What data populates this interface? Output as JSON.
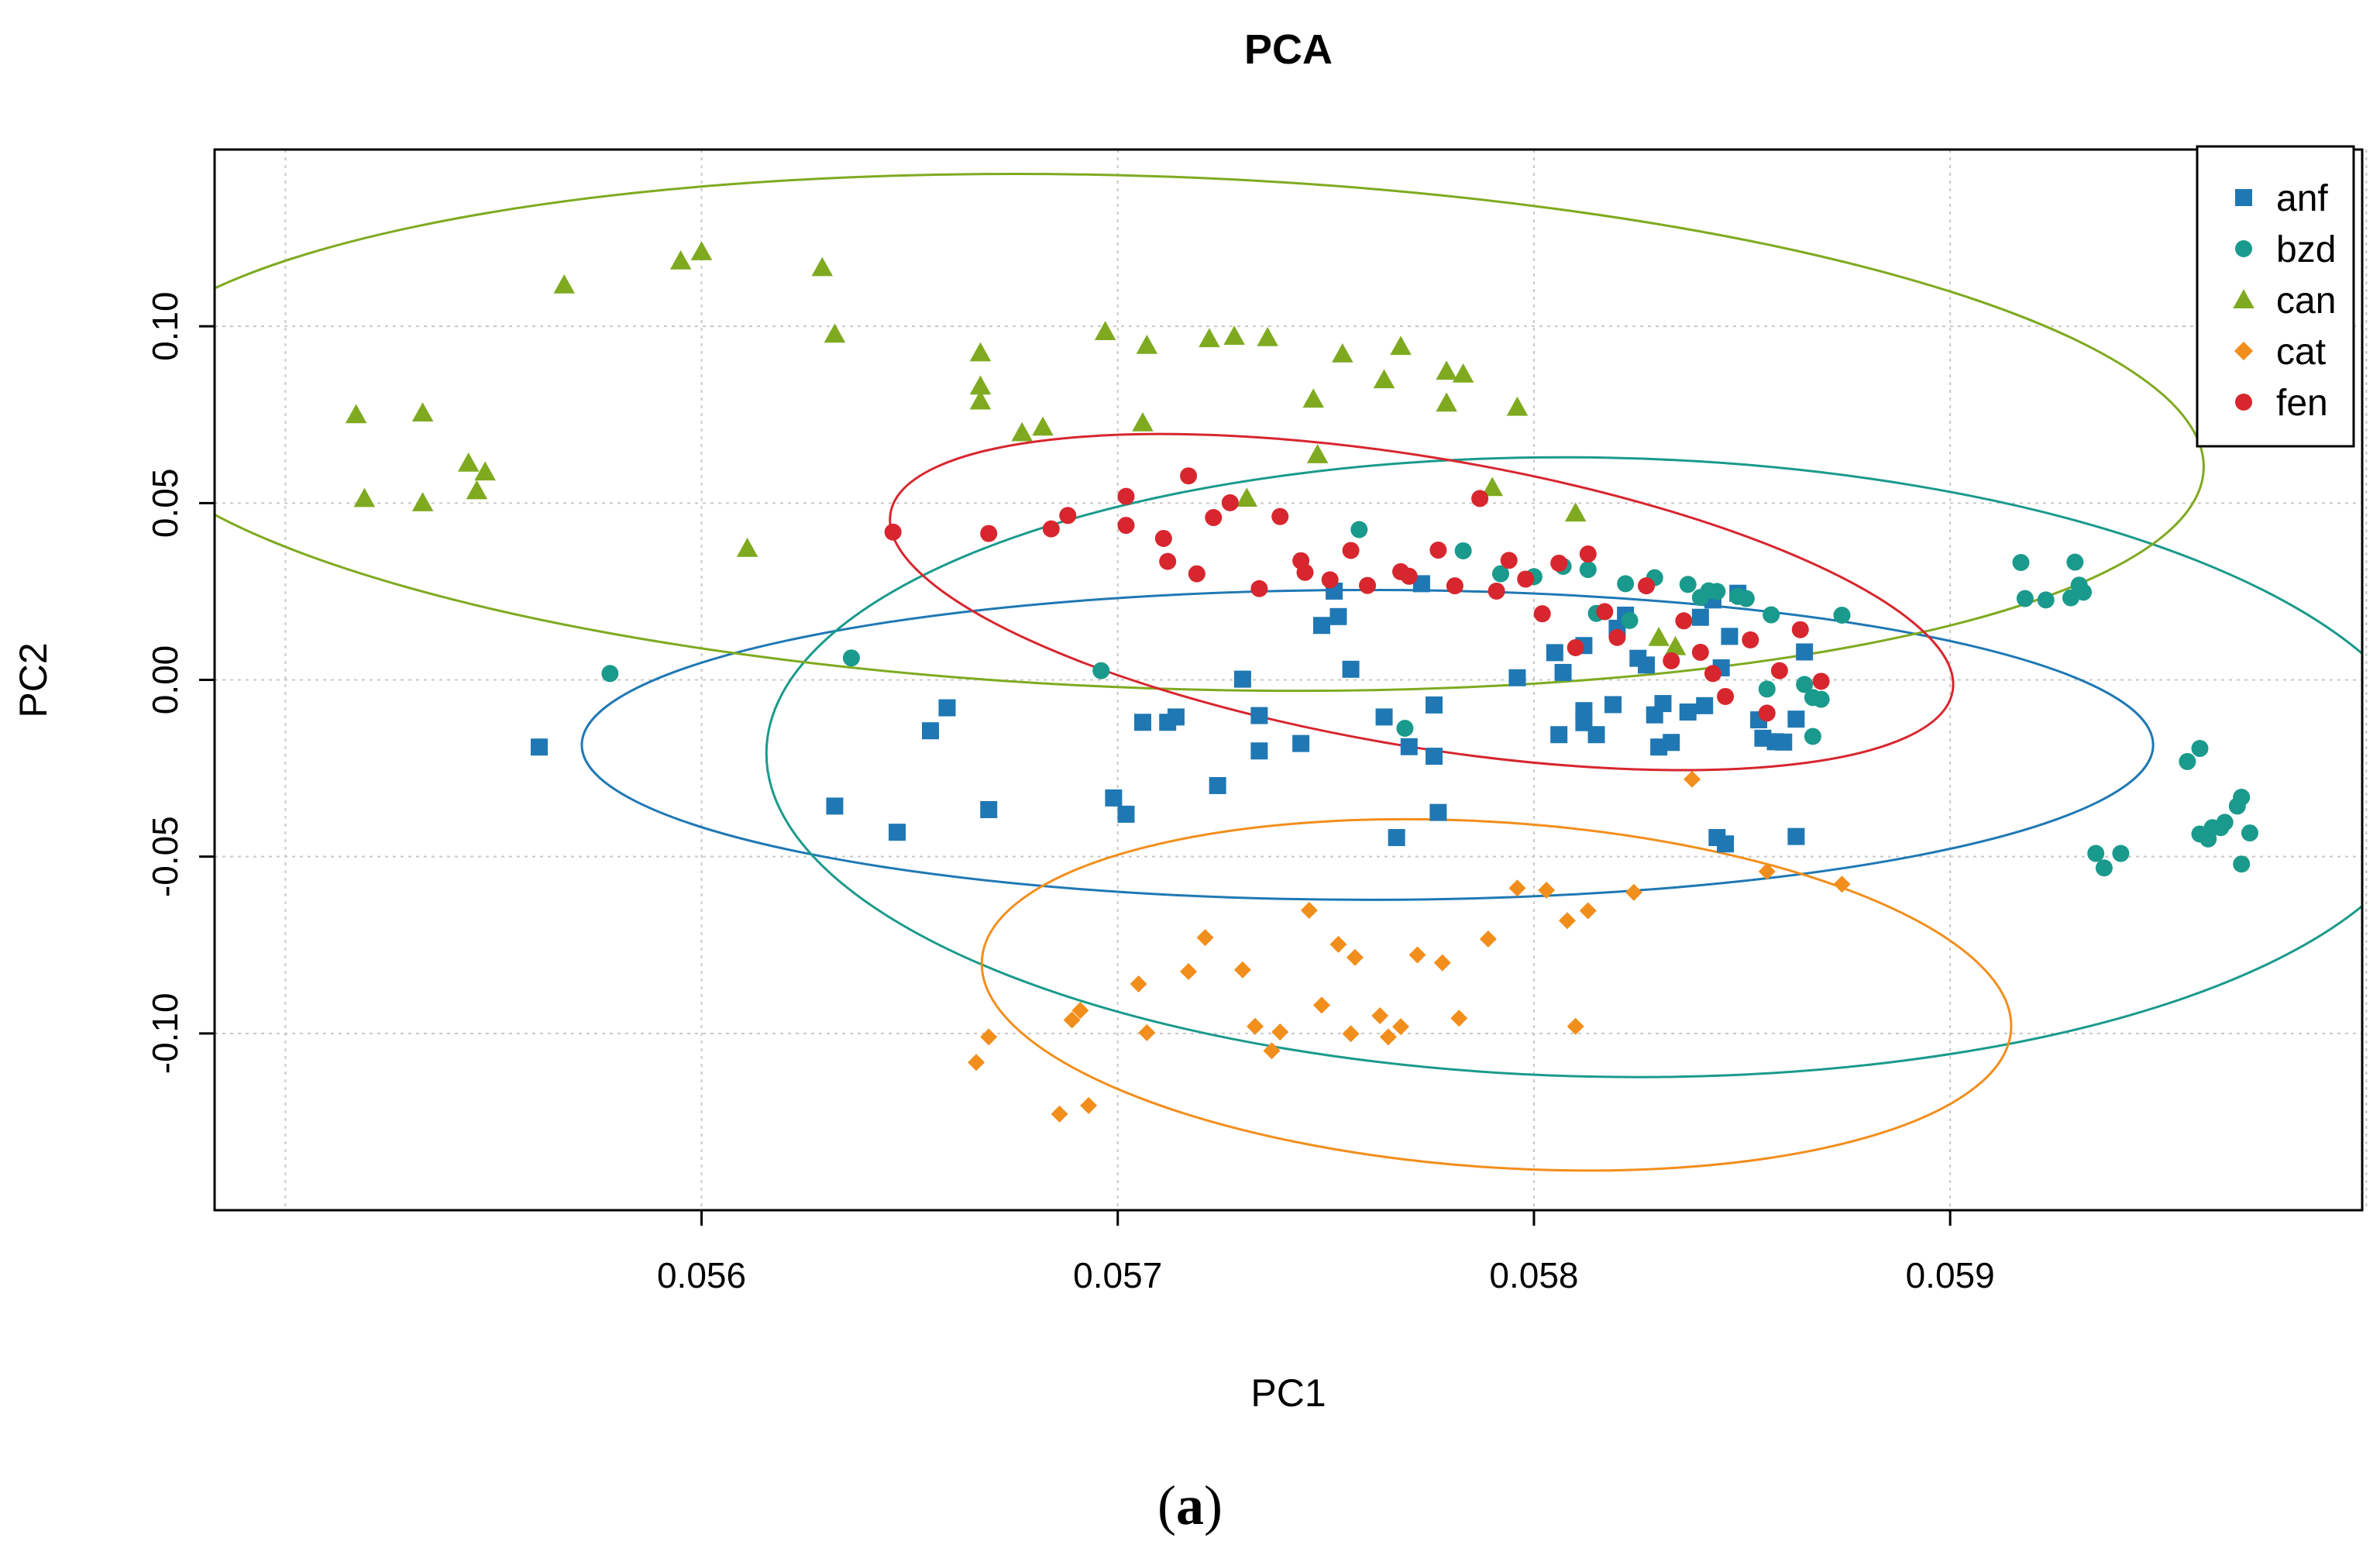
{
  "caption": {
    "label": "a"
  },
  "chart_data": {
    "type": "scatter",
    "title": "PCA",
    "xlabel": "PC1",
    "ylabel": "PC2",
    "xlim": [
      0.05483,
      0.05999
    ],
    "ylim": [
      -0.15,
      0.15
    ],
    "xticks": [
      0.056,
      0.057,
      0.058,
      0.059
    ],
    "xtick_labels": [
      "0.056",
      "0.057",
      "0.058",
      "0.059"
    ],
    "yticks": [
      -0.1,
      -0.05,
      0.0,
      0.05,
      0.1
    ],
    "ytick_labels": [
      "-0.10",
      "-0.05",
      "0.00",
      "0.05",
      "0.10"
    ],
    "grid": true,
    "legend_position": "top-right",
    "series": [
      {
        "name": "anf",
        "color": "#1F78B4",
        "marker": "square",
        "ellipse": {
          "cx": 0.0576,
          "cy": -0.0184,
          "rx": 0.0018877,
          "ry": 0.04381,
          "angle_deg": 0.0
        },
        "points": [
          [
            0.05561,
            -0.019
          ],
          [
            0.05632,
            -0.0357
          ],
          [
            0.05647,
            -0.0431
          ],
          [
            0.05655,
            -0.0144
          ],
          [
            0.05659,
            -0.0079
          ],
          [
            0.05669,
            -0.0367
          ],
          [
            0.05699,
            -0.0334
          ],
          [
            0.05702,
            -0.038
          ],
          [
            0.05706,
            -0.012
          ],
          [
            0.05712,
            -0.012
          ],
          [
            0.05714,
            -0.0105
          ],
          [
            0.05724,
            -0.0299
          ],
          [
            0.0573,
            0.0002
          ],
          [
            0.05734,
            -0.0101
          ],
          [
            0.05734,
            -0.0201
          ],
          [
            0.05744,
            -0.018
          ],
          [
            0.05749,
            0.0154
          ],
          [
            0.05752,
            0.0251
          ],
          [
            0.05753,
            0.0179
          ],
          [
            0.05756,
            0.003
          ],
          [
            0.05764,
            -0.0105
          ],
          [
            0.05767,
            -0.0446
          ],
          [
            0.0577,
            -0.0189
          ],
          [
            0.05773,
            0.0272
          ],
          [
            0.05776,
            -0.0071
          ],
          [
            0.05776,
            -0.0216
          ],
          [
            0.05777,
            -0.0375
          ],
          [
            0.05796,
            0.0006
          ],
          [
            0.05805,
            0.0077
          ],
          [
            0.05806,
            -0.0155
          ],
          [
            0.05807,
            0.0021
          ],
          [
            0.05812,
            0.0097
          ],
          [
            0.05812,
            -0.0087
          ],
          [
            0.05812,
            -0.0121
          ],
          [
            0.05815,
            -0.0155
          ],
          [
            0.05819,
            -0.007
          ],
          [
            0.0582,
            0.0146
          ],
          [
            0.05822,
            0.0183
          ],
          [
            0.05825,
            0.0061
          ],
          [
            0.05827,
            0.0042
          ],
          [
            0.05829,
            -0.0099
          ],
          [
            0.0583,
            -0.019
          ],
          [
            0.05831,
            -0.0067
          ],
          [
            0.05833,
            -0.0177
          ],
          [
            0.05837,
            -0.0091
          ],
          [
            0.0584,
            0.0177
          ],
          [
            0.05841,
            -0.0073
          ],
          [
            0.05843,
            0.0226
          ],
          [
            0.05844,
            -0.0446
          ],
          [
            0.05845,
            0.0034
          ],
          [
            0.05846,
            -0.0464
          ],
          [
            0.05847,
            0.0123
          ],
          [
            0.05849,
            0.0245
          ],
          [
            0.05854,
            -0.0113
          ],
          [
            0.05855,
            -0.0165
          ],
          [
            0.05858,
            -0.0175
          ],
          [
            0.0586,
            -0.0176
          ],
          [
            0.05863,
            -0.0443
          ],
          [
            0.05863,
            -0.0111
          ],
          [
            0.05865,
            0.0079
          ]
        ]
      },
      {
        "name": "bzd",
        "color": "#1A9A8C",
        "marker": "circle",
        "ellipse": {
          "cx": 0.05816,
          "cy": -0.0247,
          "rx": 0.0020045,
          "ry": 0.08755,
          "angle_deg": -1.1
        },
        "points": [
          [
            0.05578,
            0.0018
          ],
          [
            0.05636,
            0.0062
          ],
          [
            0.05696,
            0.0026
          ],
          [
            0.05758,
            0.0425
          ],
          [
            0.05769,
            -0.0137
          ],
          [
            0.05783,
            0.0365
          ],
          [
            0.05792,
            0.03
          ],
          [
            0.058,
            0.0292
          ],
          [
            0.05807,
            0.0321
          ],
          [
            0.05813,
            0.0312
          ],
          [
            0.05815,
            0.0188
          ],
          [
            0.05822,
            0.0272
          ],
          [
            0.05823,
            0.0168
          ],
          [
            0.05829,
            0.0289
          ],
          [
            0.05837,
            0.027
          ],
          [
            0.0584,
            0.0233
          ],
          [
            0.05842,
            0.0252
          ],
          [
            0.05844,
            0.025
          ],
          [
            0.05849,
            0.0236
          ],
          [
            0.05851,
            0.023
          ],
          [
            0.05856,
            -0.0026
          ],
          [
            0.05857,
            0.0184
          ],
          [
            0.05865,
            -0.0013
          ],
          [
            0.05867,
            -0.005
          ],
          [
            0.05867,
            -0.016
          ],
          [
            0.05869,
            -0.0055
          ],
          [
            0.05874,
            0.0183
          ],
          [
            0.05917,
            0.0332
          ],
          [
            0.05918,
            0.023
          ],
          [
            0.05923,
            0.0226
          ],
          [
            0.05929,
            0.0232
          ],
          [
            0.0593,
            0.0333
          ],
          [
            0.05931,
            0.0268
          ],
          [
            0.05932,
            0.0248
          ],
          [
            0.05935,
            -0.0491
          ],
          [
            0.05937,
            -0.0532
          ],
          [
            0.05941,
            -0.0491
          ],
          [
            0.05957,
            -0.0231
          ],
          [
            0.0596,
            -0.0194
          ],
          [
            0.0596,
            -0.0436
          ],
          [
            0.05962,
            -0.045
          ],
          [
            0.05963,
            -0.0418
          ],
          [
            0.05965,
            -0.0418
          ],
          [
            0.05966,
            -0.0403
          ],
          [
            0.05969,
            -0.0357
          ],
          [
            0.0597,
            -0.0332
          ],
          [
            0.0597,
            -0.0521
          ],
          [
            0.05972,
            -0.0433
          ]
        ]
      },
      {
        "name": "can",
        "color": "#7FAA20",
        "marker": "triangle",
        "ellipse": {
          "cx": 0.05709,
          "cy": 0.07,
          "rx": 0.0025207,
          "ry": 0.0724,
          "angle_deg": -2.0
        },
        "points": [
          [
            0.05517,
            0.075
          ],
          [
            0.05519,
            0.0513
          ],
          [
            0.05533,
            0.0501
          ],
          [
            0.05533,
            0.0755
          ],
          [
            0.05544,
            0.0613
          ],
          [
            0.05546,
            0.0535
          ],
          [
            0.05548,
            0.0588
          ],
          [
            0.05567,
            0.1117
          ],
          [
            0.05595,
            0.1185
          ],
          [
            0.056,
            0.1211
          ],
          [
            0.05611,
            0.0372
          ],
          [
            0.05629,
            0.1166
          ],
          [
            0.05632,
            0.0978
          ],
          [
            0.05667,
            0.0925
          ],
          [
            0.05667,
            0.0831
          ],
          [
            0.05667,
            0.0789
          ],
          [
            0.05677,
            0.0699
          ],
          [
            0.05682,
            0.0715
          ],
          [
            0.05697,
            0.0985
          ],
          [
            0.05706,
            0.0727
          ],
          [
            0.05707,
            0.0946
          ],
          [
            0.05722,
            0.0965
          ],
          [
            0.05728,
            0.0972
          ],
          [
            0.05731,
            0.0514
          ],
          [
            0.05736,
            0.0968
          ],
          [
            0.05747,
            0.0794
          ],
          [
            0.05748,
            0.0637
          ],
          [
            0.05754,
            0.0922
          ],
          [
            0.05764,
            0.0849
          ],
          [
            0.05768,
            0.0943
          ],
          [
            0.05779,
            0.0873
          ],
          [
            0.05779,
            0.0783
          ],
          [
            0.05783,
            0.0865
          ],
          [
            0.0579,
            0.0544
          ],
          [
            0.05796,
            0.0771
          ],
          [
            0.0581,
            0.0472
          ],
          [
            0.0583,
            0.012
          ],
          [
            0.05834,
            0.0094
          ]
        ]
      },
      {
        "name": "cat",
        "color": "#F28E1C",
        "marker": "diamond",
        "ellipse": {
          "cx": 0.05791,
          "cy": -0.0891,
          "rx": 0.0012392,
          "ry": 0.0488,
          "angle_deg": -3.9
        },
        "points": [
          [
            0.05666,
            -0.1082
          ],
          [
            0.05669,
            -0.101
          ],
          [
            0.05686,
            -0.1228
          ],
          [
            0.05689,
            -0.0962
          ],
          [
            0.05691,
            -0.0935
          ],
          [
            0.05693,
            -0.1204
          ],
          [
            0.05705,
            -0.086
          ],
          [
            0.05707,
            -0.0998
          ],
          [
            0.05717,
            -0.0825
          ],
          [
            0.05721,
            -0.0729
          ],
          [
            0.0573,
            -0.082
          ],
          [
            0.05733,
            -0.098
          ],
          [
            0.05737,
            -0.1049
          ],
          [
            0.05739,
            -0.0996
          ],
          [
            0.05746,
            -0.0652
          ],
          [
            0.05749,
            -0.092
          ],
          [
            0.05753,
            -0.0748
          ],
          [
            0.05756,
            -0.1001
          ],
          [
            0.05757,
            -0.0785
          ],
          [
            0.05763,
            -0.095
          ],
          [
            0.05765,
            -0.101
          ],
          [
            0.05768,
            -0.0981
          ],
          [
            0.05772,
            -0.0778
          ],
          [
            0.05778,
            -0.08
          ],
          [
            0.05782,
            -0.0957
          ],
          [
            0.05789,
            -0.0733
          ],
          [
            0.05796,
            -0.0589
          ],
          [
            0.05803,
            -0.0595
          ],
          [
            0.05808,
            -0.0681
          ],
          [
            0.0581,
            -0.098
          ],
          [
            0.05813,
            -0.0653
          ],
          [
            0.05824,
            -0.0601
          ],
          [
            0.05838,
            -0.0281
          ],
          [
            0.05856,
            -0.0542
          ],
          [
            0.05874,
            -0.0578
          ]
        ]
      },
      {
        "name": "fen",
        "color": "#D7262E",
        "marker": "circle",
        "ellipse": {
          "cx": 0.05773,
          "cy": 0.022,
          "rx": 0.0012937,
          "ry": 0.0409,
          "angle_deg": -9.5
        },
        "points": [
          [
            0.05646,
            0.0418
          ],
          [
            0.05669,
            0.0414
          ],
          [
            0.05684,
            0.0427
          ],
          [
            0.05688,
            0.0465
          ],
          [
            0.05702,
            0.0437
          ],
          [
            0.05702,
            0.0519
          ],
          [
            0.05711,
            0.04
          ],
          [
            0.05712,
            0.0335
          ],
          [
            0.05717,
            0.0577
          ],
          [
            0.05719,
            0.03
          ],
          [
            0.05723,
            0.0459
          ],
          [
            0.05727,
            0.0501
          ],
          [
            0.05734,
            0.0258
          ],
          [
            0.05739,
            0.0462
          ],
          [
            0.05744,
            0.0337
          ],
          [
            0.05745,
            0.0304
          ],
          [
            0.05751,
            0.0283
          ],
          [
            0.05756,
            0.0366
          ],
          [
            0.0576,
            0.0267
          ],
          [
            0.05768,
            0.0306
          ],
          [
            0.0577,
            0.0293
          ],
          [
            0.05777,
            0.0367
          ],
          [
            0.05781,
            0.0266
          ],
          [
            0.05787,
            0.0513
          ],
          [
            0.05791,
            0.0251
          ],
          [
            0.05794,
            0.0338
          ],
          [
            0.05798,
            0.0285
          ],
          [
            0.05802,
            0.0187
          ],
          [
            0.05806,
            0.033
          ],
          [
            0.0581,
            0.0091
          ],
          [
            0.05813,
            0.0356
          ],
          [
            0.05817,
            0.0193
          ],
          [
            0.0582,
            0.012
          ],
          [
            0.05827,
            0.0266
          ],
          [
            0.05833,
            0.0054
          ],
          [
            0.05836,
            0.0167
          ],
          [
            0.0584,
            0.0078
          ],
          [
            0.05843,
            0.0018
          ],
          [
            0.05846,
            -0.0047
          ],
          [
            0.05852,
            0.0113
          ],
          [
            0.05856,
            -0.0094
          ],
          [
            0.05859,
            0.0026
          ],
          [
            0.05864,
            0.0142
          ],
          [
            0.05869,
            -0.0004
          ]
        ]
      }
    ]
  }
}
